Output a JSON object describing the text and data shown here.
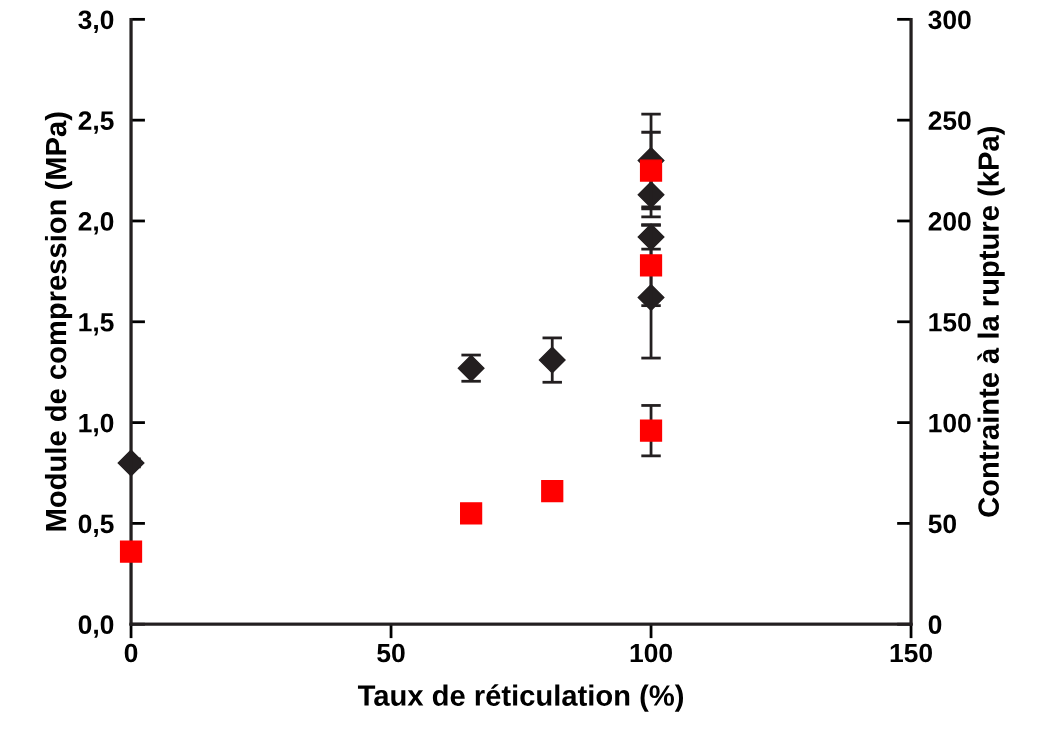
{
  "chart_data": {
    "type": "scatter",
    "xlabel": "Taux de réticulation (%)",
    "ylabel": "Module de compression (MPa)",
    "y2label": "Contrainte à la rupture (kPa)",
    "xlim": [
      0,
      150
    ],
    "xticks": [
      0,
      50,
      100,
      150
    ],
    "ylim": [
      0,
      3
    ],
    "yticks": [
      {
        "value": 0,
        "label": "0,0"
      },
      {
        "value": 0.5,
        "label": "0,5"
      },
      {
        "value": 1,
        "label": "1,0"
      },
      {
        "value": 1.5,
        "label": "1,5"
      },
      {
        "value": 2,
        "label": "2,0"
      },
      {
        "value": 2.5,
        "label": "2,5"
      },
      {
        "value": 3,
        "label": "3,0"
      }
    ],
    "y2lim": [
      0,
      300
    ],
    "y2ticks": [
      0,
      50,
      100,
      150,
      200,
      250,
      300
    ],
    "grid": false,
    "legend": false,
    "series": [
      {
        "color": "#231f20",
        "marker": "diamond",
        "x": [
          0,
          65.4,
          81,
          100,
          100,
          100,
          100
        ],
        "values": [
          0.8,
          1.27,
          1.31,
          2.3,
          2.13,
          1.92,
          1.62
        ],
        "errors": [
          0.02,
          0.065,
          0.11,
          0.23,
          0.11,
          0.06,
          0.3
        ]
      },
      {
        "color": "#ff0000",
        "marker": "square",
        "axis": "y2",
        "x": [
          0,
          65.4,
          81,
          100,
          100,
          100
        ],
        "values": [
          36,
          55,
          66,
          225,
          178,
          96
        ],
        "errors": [
          null,
          null,
          null,
          19,
          20,
          12.5
        ]
      }
    ]
  }
}
